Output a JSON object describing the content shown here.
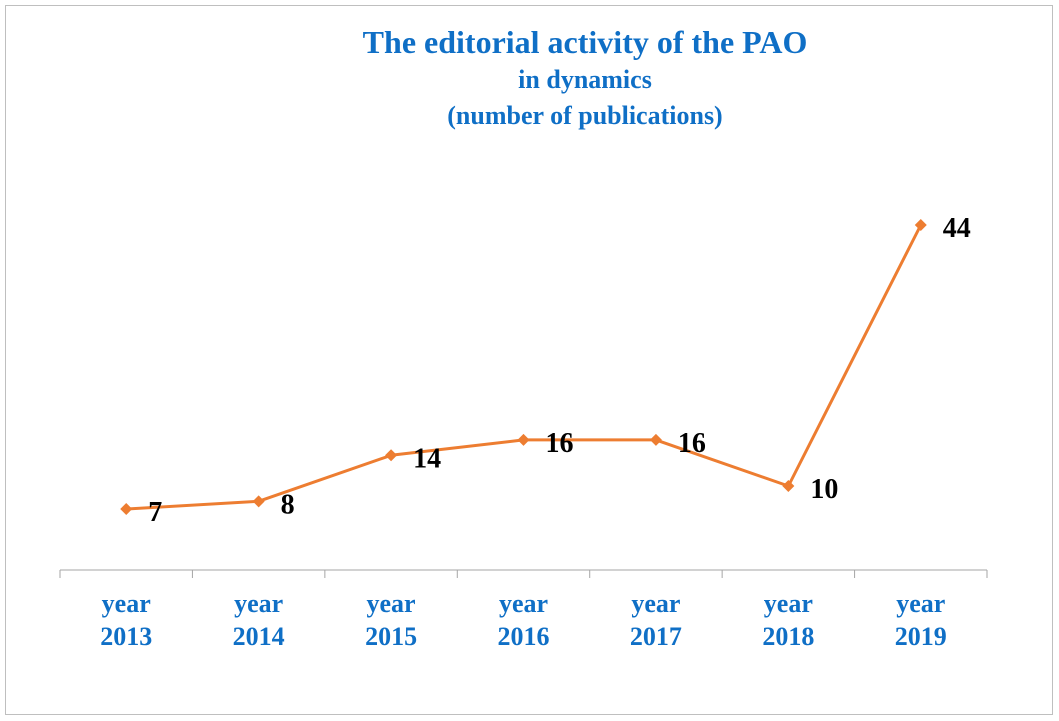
{
  "title": {
    "line1": "The editorial activity of the PAO",
    "line2": "in dynamics",
    "line3": "(number of publications)"
  },
  "colors": {
    "title": "#0f6fc6",
    "series": "#ed7d31",
    "category_labels": "#0f6fc6",
    "data_labels": "#000000",
    "axis": "#a6a6a6",
    "border": "#bfbfbf"
  },
  "chart_data": {
    "type": "line",
    "title": "The editorial activity of the PAO in dynamics (number of publications)",
    "categories": [
      [
        "year",
        "2013"
      ],
      [
        "year",
        "2014"
      ],
      [
        "year",
        "2015"
      ],
      [
        "year",
        "2016"
      ],
      [
        "year",
        "2017"
      ],
      [
        "year",
        "2018"
      ],
      [
        "year",
        "2019"
      ]
    ],
    "values": [
      7,
      8,
      14,
      16,
      16,
      10,
      44
    ],
    "marker": "diamond",
    "data_labels": true,
    "grid": false,
    "legend": "none",
    "xlabel": "",
    "ylabel": ""
  }
}
